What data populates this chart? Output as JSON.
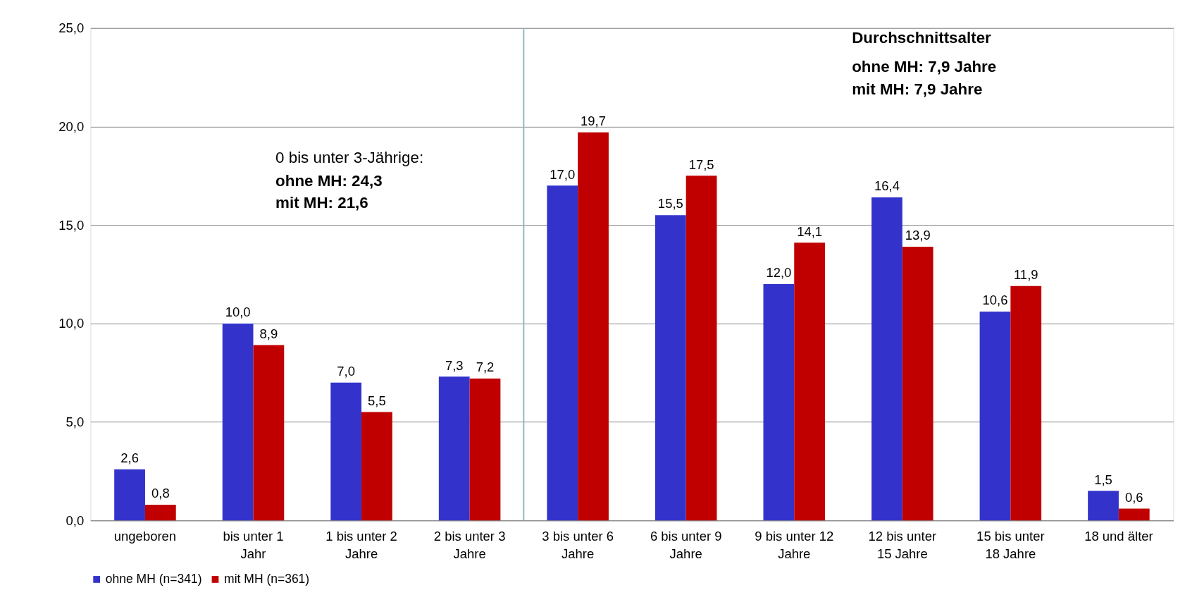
{
  "chart_data": {
    "type": "bar",
    "categories": [
      "ungeboren",
      "bis unter 1\nJahr",
      "1 bis unter 2\nJahre",
      "2 bis unter 3\nJahre",
      "3 bis unter 6\nJahre",
      "6 bis unter 9\nJahre",
      "9 bis unter 12\nJahre",
      "12 bis unter\n15 Jahre",
      "15 bis unter\n18 Jahre",
      "18 und älter"
    ],
    "series": [
      {
        "name": "ohne MH (n=341)",
        "color": "#3333cc",
        "values": [
          2.6,
          10.0,
          7.0,
          7.3,
          17.0,
          15.5,
          12.0,
          16.4,
          10.6,
          1.5
        ],
        "value_labels": [
          "2,6",
          "10,0",
          "7,0",
          "7,3",
          "17,0",
          "15,5",
          "12,0",
          "16,4",
          "10,6",
          "1,5"
        ]
      },
      {
        "name": "mit MH (n=361)",
        "color": "#c00000",
        "values": [
          0.8,
          8.9,
          5.5,
          7.2,
          19.7,
          17.5,
          14.1,
          13.9,
          11.9,
          0.6
        ],
        "value_labels": [
          "0,8",
          "8,9",
          "5,5",
          "7,2",
          "19,7",
          "17,5",
          "14,1",
          "13,9",
          "11,9",
          "0,6"
        ]
      }
    ],
    "ylim": [
      0,
      25
    ],
    "yticks": [
      {
        "value": 0,
        "label": "0,0"
      },
      {
        "value": 5,
        "label": "5,0"
      },
      {
        "value": 10,
        "label": "10,0"
      },
      {
        "value": 15,
        "label": "15,0"
      },
      {
        "value": 20,
        "label": "20,0"
      },
      {
        "value": 25,
        "label": "25,0"
      }
    ],
    "grid": "y",
    "legend": "bottom",
    "ref_lines": [
      {
        "axis": "x",
        "value": "3 bis unter 6\nJahre",
        "color": "#8fb4c4"
      }
    ],
    "annotations": [
      "0 bis unter 3-Jährige:",
      "ohne MH: 24,3",
      "mit MH: 21,6",
      "Durchschnittsalter",
      "ohne MH: 7,9 Jahre",
      "mit MH: 7,9 Jahre"
    ]
  }
}
